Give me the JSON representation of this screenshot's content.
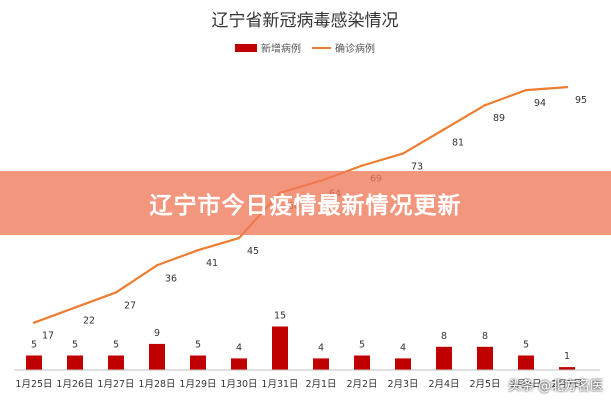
{
  "banner": {
    "text": "辽宁市今日疫情最新情况更新"
  },
  "watermark": {
    "text": "头条 @北方名医"
  },
  "colors": {
    "bar": "#c00000",
    "line": "#ed7d31",
    "banner": "#f0785a"
  },
  "chart_data": {
    "type": "bar+line",
    "title": "辽宁省新冠病毒感染情况",
    "categories": [
      "1月25日",
      "1月26日",
      "1月27日",
      "1月28日",
      "1月29日",
      "1月30日",
      "1月31日",
      "2月1日",
      "2月2日",
      "2月3日",
      "2月4日",
      "2月5日",
      "2月6日",
      "2月7日"
    ],
    "series": [
      {
        "name": "新增病例",
        "type": "bar",
        "values": [
          5,
          5,
          5,
          9,
          5,
          4,
          15,
          4,
          5,
          4,
          8,
          8,
          5,
          1
        ]
      },
      {
        "name": "确诊病例",
        "type": "line",
        "values": [
          17,
          22,
          27,
          36,
          41,
          45,
          60,
          64,
          69,
          73,
          81,
          89,
          94,
          95
        ]
      }
    ],
    "legend_position": "top",
    "grid": false
  }
}
